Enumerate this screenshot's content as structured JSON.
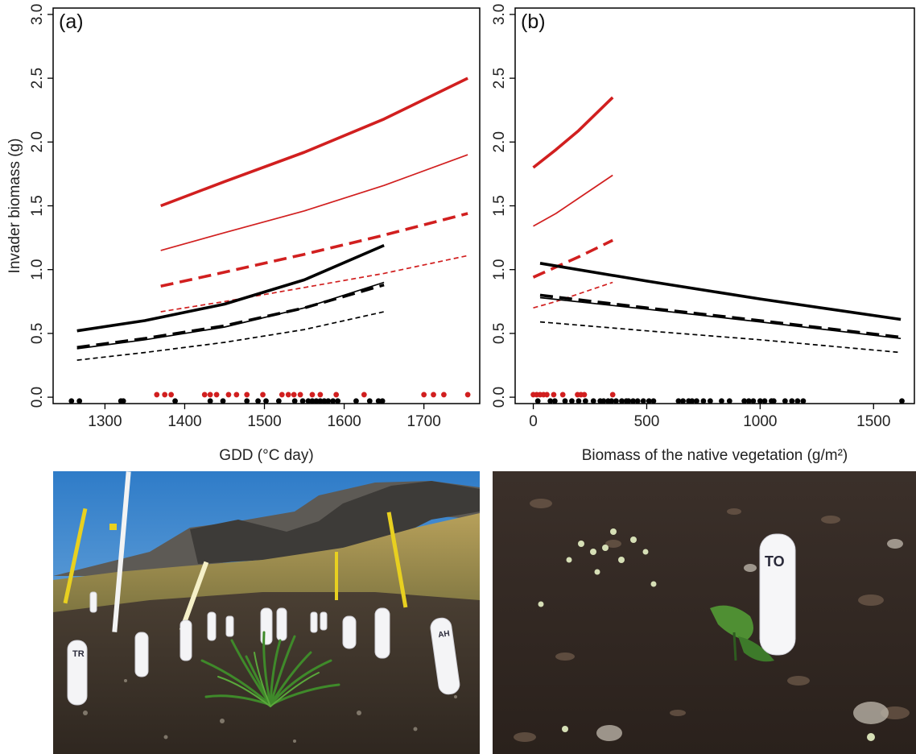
{
  "colors": {
    "red": "#d11f1f",
    "black": "#000000"
  },
  "chart_data": [
    {
      "type": "line",
      "panel_label": "(a)",
      "xlabel": "GDD (°C day)",
      "ylabel": "Invader biomass (g)",
      "xlim": [
        1235,
        1770
      ],
      "ylim": [
        -0.05,
        3.05
      ],
      "xticks": [
        1300,
        1400,
        1500,
        1600,
        1700
      ],
      "yticks": [
        "0.0",
        "0.5",
        "1.0",
        "1.5",
        "2.0",
        "2.5",
        "3.0"
      ],
      "grid": false,
      "series": [
        {
          "color": "red",
          "style": "solid",
          "weight": "thick",
          "x": [
            1370,
            1450,
            1550,
            1650,
            1755
          ],
          "y": [
            1.5,
            1.69,
            1.92,
            2.18,
            2.5
          ]
        },
        {
          "color": "red",
          "style": "solid",
          "weight": "thin",
          "x": [
            1370,
            1450,
            1550,
            1650,
            1755
          ],
          "y": [
            1.15,
            1.29,
            1.46,
            1.66,
            1.9
          ]
        },
        {
          "color": "red",
          "style": "dashed",
          "weight": "thick",
          "x": [
            1370,
            1450,
            1550,
            1650,
            1755
          ],
          "y": [
            0.87,
            0.98,
            1.12,
            1.27,
            1.44
          ]
        },
        {
          "color": "red",
          "style": "dashed",
          "weight": "thin",
          "x": [
            1370,
            1450,
            1550,
            1650,
            1755
          ],
          "y": [
            0.67,
            0.75,
            0.86,
            0.97,
            1.11
          ]
        },
        {
          "color": "black",
          "style": "solid",
          "weight": "thick",
          "x": [
            1265,
            1350,
            1450,
            1550,
            1650
          ],
          "y": [
            0.52,
            0.6,
            0.73,
            0.92,
            1.19
          ]
        },
        {
          "color": "black",
          "style": "solid",
          "weight": "thin",
          "x": [
            1265,
            1350,
            1450,
            1550,
            1650
          ],
          "y": [
            0.38,
            0.45,
            0.55,
            0.7,
            0.9
          ]
        },
        {
          "color": "black",
          "style": "dashed",
          "weight": "thick",
          "x": [
            1265,
            1350,
            1450,
            1550,
            1650
          ],
          "y": [
            0.39,
            0.46,
            0.56,
            0.7,
            0.88
          ]
        },
        {
          "color": "black",
          "style": "dashed",
          "weight": "thin",
          "x": [
            1265,
            1350,
            1450,
            1550,
            1650
          ],
          "y": [
            0.29,
            0.35,
            0.43,
            0.53,
            0.67
          ]
        }
      ],
      "rug": [
        {
          "color": "red",
          "y": 0.02,
          "x": [
            1365,
            1375,
            1383,
            1425,
            1432,
            1440,
            1455,
            1465,
            1478,
            1498,
            1522,
            1530,
            1537,
            1545,
            1560,
            1570,
            1590,
            1625,
            1700,
            1712,
            1725,
            1755
          ]
        },
        {
          "color": "black",
          "y": -0.03,
          "x": [
            1258,
            1268,
            1320,
            1323,
            1388,
            1432,
            1448,
            1478,
            1492,
            1502,
            1518,
            1538,
            1548,
            1555,
            1560,
            1565,
            1570,
            1575,
            1580,
            1586,
            1592,
            1615,
            1632,
            1643,
            1648
          ]
        }
      ]
    },
    {
      "type": "line",
      "panel_label": "(b)",
      "xlabel": "Biomass of the native vegetation (g/m²)",
      "ylabel": "",
      "xlim": [
        -80,
        1680
      ],
      "ylim": [
        -0.05,
        3.05
      ],
      "xticks": [
        0,
        500,
        1000,
        1500
      ],
      "yticks": [
        "0.0",
        "0.5",
        "1.0",
        "1.5",
        "2.0",
        "2.5",
        "3.0"
      ],
      "grid": false,
      "series": [
        {
          "color": "red",
          "style": "solid",
          "weight": "thick",
          "x": [
            0,
            100,
            200,
            350
          ],
          "y": [
            1.8,
            1.94,
            2.09,
            2.35
          ]
        },
        {
          "color": "red",
          "style": "solid",
          "weight": "thin",
          "x": [
            0,
            100,
            200,
            350
          ],
          "y": [
            1.34,
            1.44,
            1.56,
            1.74
          ]
        },
        {
          "color": "red",
          "style": "dashed",
          "weight": "thick",
          "x": [
            0,
            100,
            200,
            350
          ],
          "y": [
            0.94,
            1.02,
            1.1,
            1.23
          ]
        },
        {
          "color": "red",
          "style": "dashed",
          "weight": "thin",
          "x": [
            0,
            100,
            200,
            350
          ],
          "y": [
            0.7,
            0.75,
            0.81,
            0.9
          ]
        },
        {
          "color": "black",
          "style": "solid",
          "weight": "thick",
          "x": [
            30,
            500,
            1000,
            1620
          ],
          "y": [
            1.05,
            0.91,
            0.77,
            0.61
          ]
        },
        {
          "color": "black",
          "style": "solid",
          "weight": "thin",
          "x": [
            30,
            500,
            1000,
            1620
          ],
          "y": [
            0.78,
            0.69,
            0.59,
            0.46
          ]
        },
        {
          "color": "black",
          "style": "dashed",
          "weight": "thick",
          "x": [
            30,
            500,
            1000,
            1620
          ],
          "y": [
            0.8,
            0.7,
            0.6,
            0.47
          ]
        },
        {
          "color": "black",
          "style": "dashed",
          "weight": "thin",
          "x": [
            30,
            500,
            1000,
            1620
          ],
          "y": [
            0.59,
            0.52,
            0.45,
            0.35
          ]
        }
      ],
      "rug": [
        {
          "color": "red",
          "y": 0.02,
          "x": [
            0,
            15,
            30,
            45,
            60,
            90,
            130,
            195,
            210,
            225,
            350
          ]
        },
        {
          "color": "black",
          "y": -0.03,
          "x": [
            20,
            75,
            95,
            140,
            170,
            200,
            230,
            265,
            295,
            310,
            330,
            345,
            365,
            390,
            410,
            420,
            440,
            460,
            485,
            510,
            530,
            640,
            660,
            685,
            700,
            720,
            750,
            780,
            830,
            865,
            930,
            950,
            970,
            1000,
            1020,
            1050,
            1060,
            1110,
            1140,
            1165,
            1190,
            1625
          ]
        }
      ]
    }
  ],
  "photos": {
    "left": {
      "marker_labels": [
        "TR",
        "AH"
      ]
    },
    "right": {
      "marker_labels": [
        "TO"
      ]
    }
  }
}
